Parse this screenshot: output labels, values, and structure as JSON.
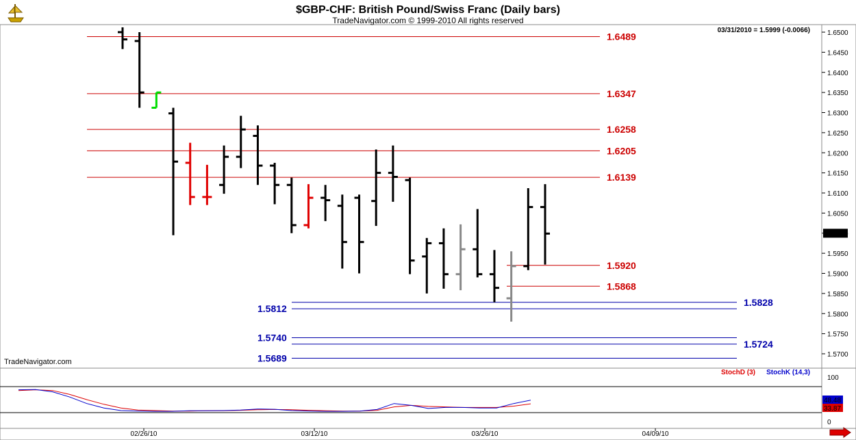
{
  "header": {
    "title": "$GBP-CHF:  British Pound/Swiss Franc  (Daily bars)",
    "subtitle": "TradeNavigator.com © 1999-2010 All rights reserved"
  },
  "info": {
    "last_quote": "03/31/2010 = 1.5999 (-0.0066)",
    "watermark": "TradeNavigator.com",
    "price_tag": "1.5999"
  },
  "icons": {
    "logo": "navigator-logo-icon",
    "scroll": "right-arrow-icon"
  },
  "colors": {
    "up_bar": "#000000",
    "down_bar": "#e00000",
    "signal_green": "#00dd00",
    "neutral_gray": "#888888",
    "resistance": "#cc0000",
    "support": "#0000aa",
    "stochD": "#dd0000",
    "stochK": "#0000cc"
  },
  "levels": {
    "resistance": [
      {
        "label": "1.6489",
        "price": 1.6489
      },
      {
        "label": "1.6347",
        "price": 1.6347
      },
      {
        "label": "1.6258",
        "price": 1.6258
      },
      {
        "label": "1.6205",
        "price": 1.6205
      },
      {
        "label": "1.6139",
        "price": 1.6139
      },
      {
        "label": "1.5920",
        "price": 1.592
      },
      {
        "label": "1.5868",
        "price": 1.5868
      }
    ],
    "support": [
      {
        "label": "1.5828",
        "price": 1.5828,
        "side": "right"
      },
      {
        "label": "1.5812",
        "price": 1.5812,
        "side": "left"
      },
      {
        "label": "1.5740",
        "price": 1.574,
        "side": "left"
      },
      {
        "label": "1.5724",
        "price": 1.5724,
        "side": "right"
      },
      {
        "label": "1.5689",
        "price": 1.5689,
        "side": "left"
      }
    ]
  },
  "indicator": {
    "stochD_label": "StochD (3)",
    "stochK_label": "StochK (14,3)",
    "stochK_value": "48.48",
    "stochD_value": "33.87",
    "ticks": [
      "100",
      "0"
    ]
  },
  "chart_data": {
    "type": "ohlc",
    "title": "$GBP-CHF:  British Pound/Swiss Franc  (Daily bars)",
    "ylim": [
      1.5665,
      1.6515
    ],
    "y_ticks": [
      "1.6500",
      "1.6450",
      "1.6400",
      "1.6350",
      "1.6300",
      "1.6250",
      "1.6200",
      "1.6150",
      "1.6100",
      "1.6050",
      "1.6000",
      "1.5950",
      "1.5900",
      "1.5850",
      "1.5800",
      "1.5750",
      "1.5700"
    ],
    "x_ticks": [
      "02/26/10",
      "03/12/10",
      "03/26/10",
      "04/09/10"
    ],
    "bars": [
      {
        "o": 1.65,
        "h": 1.6512,
        "l": 1.6458,
        "c": 1.6482,
        "col": "black"
      },
      {
        "o": 1.6478,
        "h": 1.65,
        "l": 1.6312,
        "c": 1.635,
        "col": "black"
      },
      {
        "o": 1.6312,
        "h": 1.635,
        "l": 1.6312,
        "c": 1.635,
        "col": "green"
      },
      {
        "o": 1.6298,
        "h": 1.6312,
        "l": 1.5995,
        "c": 1.6178,
        "col": "black"
      },
      {
        "o": 1.6175,
        "h": 1.6225,
        "l": 1.607,
        "c": 1.609,
        "col": "red"
      },
      {
        "o": 1.609,
        "h": 1.617,
        "l": 1.607,
        "c": 1.609,
        "col": "red"
      },
      {
        "o": 1.612,
        "h": 1.6218,
        "l": 1.6098,
        "c": 1.619,
        "col": "black"
      },
      {
        "o": 1.619,
        "h": 1.6292,
        "l": 1.6162,
        "c": 1.6258,
        "col": "black"
      },
      {
        "o": 1.6242,
        "h": 1.6268,
        "l": 1.612,
        "c": 1.6168,
        "col": "black"
      },
      {
        "o": 1.6168,
        "h": 1.6175,
        "l": 1.6072,
        "c": 1.612,
        "col": "black"
      },
      {
        "o": 1.612,
        "h": 1.6138,
        "l": 1.6,
        "c": 1.602,
        "col": "black"
      },
      {
        "o": 1.602,
        "h": 1.6122,
        "l": 1.6012,
        "c": 1.6088,
        "col": "red"
      },
      {
        "o": 1.6088,
        "h": 1.612,
        "l": 1.603,
        "c": 1.6082,
        "col": "black"
      },
      {
        "o": 1.6068,
        "h": 1.6096,
        "l": 1.5912,
        "c": 1.5978,
        "col": "black"
      },
      {
        "o": 1.6088,
        "h": 1.6096,
        "l": 1.59,
        "c": 1.5978,
        "col": "black"
      },
      {
        "o": 1.608,
        "h": 1.6208,
        "l": 1.6018,
        "c": 1.615,
        "col": "black"
      },
      {
        "o": 1.615,
        "h": 1.6218,
        "l": 1.6078,
        "c": 1.614,
        "col": "black"
      },
      {
        "o": 1.6132,
        "h": 1.6138,
        "l": 1.5898,
        "c": 1.5932,
        "col": "black"
      },
      {
        "o": 1.5942,
        "h": 1.5988,
        "l": 1.585,
        "c": 1.5975,
        "col": "black"
      },
      {
        "o": 1.5975,
        "h": 1.6012,
        "l": 1.5862,
        "c": 1.5898,
        "col": "black"
      },
      {
        "o": 1.5898,
        "h": 1.6022,
        "l": 1.5858,
        "c": 1.596,
        "col": "gray"
      },
      {
        "o": 1.596,
        "h": 1.606,
        "l": 1.589,
        "c": 1.5898,
        "col": "black"
      },
      {
        "o": 1.5898,
        "h": 1.5958,
        "l": 1.5828,
        "c": 1.5864,
        "col": "black"
      },
      {
        "o": 1.5838,
        "h": 1.5955,
        "l": 1.578,
        "c": 1.5918,
        "col": "gray"
      },
      {
        "o": 1.5918,
        "h": 1.6112,
        "l": 1.5908,
        "c": 1.6065,
        "col": "black"
      },
      {
        "o": 1.6065,
        "h": 1.6122,
        "l": 1.5922,
        "c": 1.5999,
        "col": "black"
      }
    ],
    "stochK": [
      88,
      89,
      80,
      60,
      35,
      18,
      8,
      6,
      5,
      5,
      7,
      7,
      8,
      10,
      14,
      13,
      8,
      6,
      5,
      5,
      6,
      12,
      35,
      28,
      16,
      20,
      20,
      18,
      18,
      35,
      48
    ],
    "stochD": [
      85,
      88,
      85,
      70,
      50,
      32,
      18,
      10,
      8,
      6,
      6,
      7,
      7,
      9,
      11,
      12,
      11,
      9,
      7,
      6,
      6,
      9,
      22,
      28,
      24,
      22,
      20,
      20,
      20,
      25,
      34
    ]
  }
}
